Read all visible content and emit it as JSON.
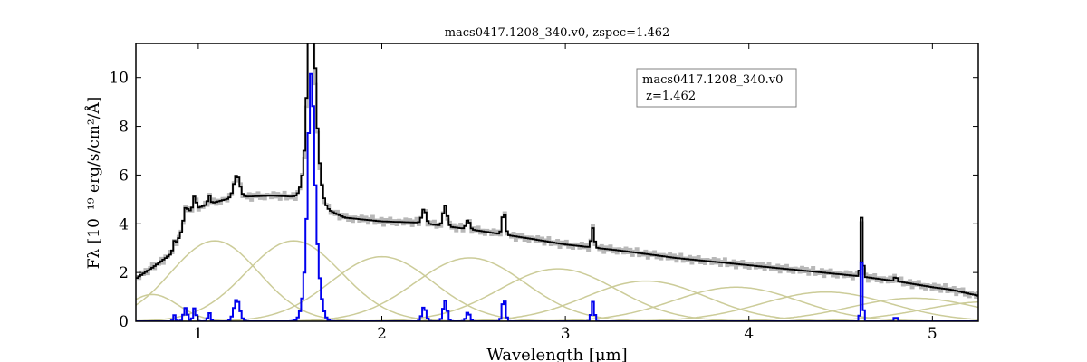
{
  "chart_data": {
    "type": "line",
    "title": "macs0417.1208_340.v0, zspec=1.462",
    "xlabel": "Wavelength [μm]",
    "ylabel": "Fλ [10⁻¹⁹ erg/s/cm²/Å]",
    "xlim": [
      0.66,
      5.25
    ],
    "ylim": [
      0,
      11.4
    ],
    "xticks": [
      1,
      2,
      3,
      4,
      5
    ],
    "yticks": [
      0,
      2,
      4,
      6,
      8,
      10
    ],
    "grid": false,
    "legend": {
      "placement": "top-right",
      "line1": "macs0417.1208_340.v0",
      "line2": " z=1.462"
    },
    "colors": {
      "observed": "#b8b8b8",
      "model": "#000000",
      "lines": "#0000ee",
      "templates": "#cccc99"
    },
    "continuum": {
      "x": [
        0.66,
        0.75,
        0.85,
        0.9,
        0.95,
        1.05,
        1.2,
        1.4,
        1.55,
        1.8,
        2.0,
        2.2,
        2.5,
        2.8,
        3.0,
        3.3,
        3.6,
        4.0,
        4.4,
        4.6,
        4.8,
        5.0,
        5.1,
        5.25
      ],
      "y": [
        1.75,
        2.2,
        2.75,
        3.5,
        4.5,
        4.8,
        5.1,
        5.15,
        5.1,
        4.25,
        4.1,
        4.05,
        3.75,
        3.4,
        3.15,
        2.9,
        2.6,
        2.3,
        2.0,
        1.85,
        1.65,
        1.4,
        1.3,
        1.05
      ]
    },
    "observed_offsets": [
      0.05,
      -0.08,
      0.12,
      -0.05,
      0.1,
      -0.12,
      0.06,
      0.15,
      -0.1,
      0.04,
      -0.06,
      0.11,
      -0.14,
      0.08,
      -0.03,
      0.13,
      -0.09,
      0.05,
      -0.11,
      0.07
    ],
    "emission_lines": [
      {
        "center": 0.87,
        "amp": 0.25,
        "width": 0.006
      },
      {
        "center": 0.93,
        "amp": 0.55,
        "width": 0.01
      },
      {
        "center": 0.98,
        "amp": 0.55,
        "width": 0.008
      },
      {
        "center": 1.06,
        "amp": 0.35,
        "width": 0.007
      },
      {
        "center": 1.21,
        "amp": 0.9,
        "width": 0.016
      },
      {
        "center": 1.615,
        "amp": 5.65,
        "width": 0.015
      },
      {
        "center": 1.62,
        "amp": 4.6,
        "width": 0.03
      },
      {
        "center": 2.23,
        "amp": 0.6,
        "width": 0.011
      },
      {
        "center": 2.345,
        "amp": 0.85,
        "width": 0.011
      },
      {
        "center": 2.47,
        "amp": 0.38,
        "width": 0.01
      },
      {
        "center": 2.665,
        "amp": 0.95,
        "width": 0.009
      },
      {
        "center": 3.15,
        "amp": 0.8,
        "width": 0.008
      },
      {
        "center": 4.615,
        "amp": 2.45,
        "width": 0.006
      },
      {
        "center": 4.8,
        "amp": 0.28,
        "width": 0.005
      }
    ],
    "templates": [
      {
        "center": 0.75,
        "amp": 1.1,
        "sigma": 0.14
      },
      {
        "center": 1.09,
        "amp": 3.3,
        "sigma": 0.24
      },
      {
        "center": 1.52,
        "amp": 3.3,
        "sigma": 0.26
      },
      {
        "center": 2.0,
        "amp": 2.65,
        "sigma": 0.28
      },
      {
        "center": 2.48,
        "amp": 2.6,
        "sigma": 0.3
      },
      {
        "center": 2.96,
        "amp": 2.15,
        "sigma": 0.32
      },
      {
        "center": 3.44,
        "amp": 1.65,
        "sigma": 0.33
      },
      {
        "center": 3.93,
        "amp": 1.4,
        "sigma": 0.34
      },
      {
        "center": 4.42,
        "amp": 1.2,
        "sigma": 0.35
      },
      {
        "center": 4.9,
        "amp": 0.95,
        "sigma": 0.35
      },
      {
        "center": 5.3,
        "amp": 0.8,
        "sigma": 0.35
      }
    ]
  }
}
